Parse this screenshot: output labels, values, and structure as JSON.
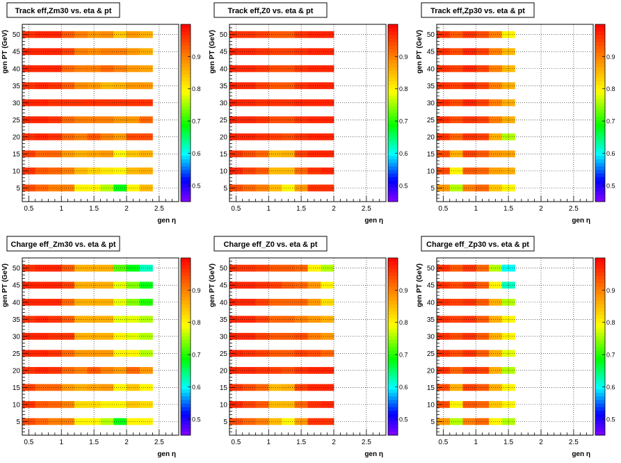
{
  "chart_data": [
    {
      "type": "heatmap",
      "title": "Track eff,Zm30 vs. eta & pt",
      "xlabel": "gen η",
      "ylabel": "gen PT (GeV)",
      "xlim": [
        0.4,
        2.8
      ],
      "ylim": [
        1,
        53
      ],
      "zlim": [
        0.45,
        1.0
      ],
      "grid": true,
      "x_ticks": [
        "0.5",
        "1",
        "1.5",
        "2",
        "2.5"
      ],
      "y_ticks": [
        "5",
        "10",
        "15",
        "20",
        "25",
        "30",
        "35",
        "40",
        "45",
        "50"
      ],
      "z_ticks": [
        "0.5",
        "0.6",
        "0.7",
        "0.8",
        "0.9"
      ],
      "eta_bins": [
        0.4,
        0.6,
        0.8,
        1.0,
        1.2,
        1.4,
        1.6,
        1.8,
        2.0,
        2.2,
        2.4
      ],
      "pt_bins": [
        4,
        6,
        9,
        11,
        14,
        16,
        19,
        21,
        24,
        26,
        29,
        31,
        34,
        36,
        39,
        41,
        44,
        46,
        49,
        51
      ],
      "values": [
        [
          0.94,
          0.92,
          0.9,
          0.9,
          0.8,
          0.8,
          0.76,
          0.68,
          0.8,
          0.85
        ],
        [
          0.96,
          0.93,
          0.92,
          0.9,
          0.85,
          0.83,
          0.81,
          0.8,
          0.85,
          0.86
        ],
        [
          0.95,
          0.92,
          0.92,
          0.88,
          0.86,
          0.87,
          0.88,
          0.8,
          0.84,
          0.86
        ],
        [
          0.96,
          0.97,
          0.96,
          0.92,
          0.9,
          0.93,
          0.9,
          0.88,
          0.94,
          0.94
        ],
        [
          0.97,
          0.97,
          0.96,
          0.92,
          0.9,
          0.9,
          0.9,
          0.88,
          0.88,
          0.92
        ],
        [
          0.97,
          0.97,
          0.96,
          0.96,
          0.96,
          0.96,
          0.96,
          0.96,
          0.96,
          0.96
        ],
        [
          0.96,
          0.97,
          0.96,
          0.93,
          0.89,
          0.88,
          0.85,
          0.86,
          0.88,
          0.88
        ],
        [
          0.97,
          0.97,
          0.97,
          0.92,
          0.9,
          0.9,
          0.92,
          0.9,
          0.88,
          0.87
        ],
        [
          0.97,
          0.97,
          0.97,
          0.95,
          0.9,
          0.89,
          0.9,
          0.9,
          0.88,
          0.86
        ],
        [
          0.96,
          0.97,
          0.97,
          0.93,
          0.9,
          0.88,
          0.89,
          0.84,
          0.88,
          0.86
        ]
      ]
    },
    {
      "type": "heatmap",
      "title": "Track eff,Z0 vs. eta & pt",
      "xlabel": "gen η",
      "ylabel": "gen PT (GeV)",
      "xlim": [
        0.4,
        2.8
      ],
      "ylim": [
        1,
        53
      ],
      "zlim": [
        0.45,
        1.0
      ],
      "grid": true,
      "x_ticks": [
        "0.5",
        "1",
        "1.5",
        "2",
        "2.5"
      ],
      "y_ticks": [
        "5",
        "10",
        "15",
        "20",
        "25",
        "30",
        "35",
        "40",
        "45",
        "50"
      ],
      "z_ticks": [
        "0.5",
        "0.6",
        "0.7",
        "0.8",
        "0.9"
      ],
      "eta_bins": [
        0.4,
        0.6,
        0.8,
        1.0,
        1.2,
        1.4,
        1.6,
        1.8,
        2.0
      ],
      "pt_bins": [
        4,
        6,
        9,
        11,
        14,
        16,
        19,
        21,
        24,
        26,
        29,
        31,
        34,
        36,
        39,
        41,
        44,
        46,
        49,
        51
      ],
      "values": [
        [
          0.94,
          0.92,
          0.9,
          0.85,
          0.8,
          0.88,
          0.96,
          0.96
        ],
        [
          0.97,
          0.95,
          0.93,
          0.85,
          0.85,
          0.92,
          0.96,
          0.97
        ],
        [
          0.96,
          0.94,
          0.92,
          0.85,
          0.86,
          0.95,
          0.97,
          0.97
        ],
        [
          0.97,
          0.97,
          0.96,
          0.95,
          0.94,
          0.96,
          0.97,
          0.97
        ],
        [
          0.97,
          0.97,
          0.96,
          0.94,
          0.94,
          0.96,
          0.97,
          0.97
        ],
        [
          0.97,
          0.97,
          0.96,
          0.96,
          0.96,
          0.97,
          0.97,
          0.97
        ],
        [
          0.97,
          0.97,
          0.95,
          0.93,
          0.93,
          0.96,
          0.97,
          0.97
        ],
        [
          0.97,
          0.97,
          0.96,
          0.94,
          0.94,
          0.96,
          0.97,
          0.97
        ],
        [
          0.97,
          0.97,
          0.96,
          0.95,
          0.95,
          0.96,
          0.97,
          0.97
        ],
        [
          0.96,
          0.96,
          0.95,
          0.93,
          0.93,
          0.96,
          0.97,
          0.97
        ]
      ]
    },
    {
      "type": "heatmap",
      "title": "Track eff,Zp30 vs. eta & pt",
      "xlabel": "gen η",
      "ylabel": "gen PT (GeV)",
      "xlim": [
        0.4,
        2.8
      ],
      "ylim": [
        1,
        53
      ],
      "zlim": [
        0.45,
        1.0
      ],
      "grid": true,
      "x_ticks": [
        "0.5",
        "1",
        "1.5",
        "2",
        "2.5"
      ],
      "y_ticks": [
        "5",
        "10",
        "15",
        "20",
        "25",
        "30",
        "35",
        "40",
        "45",
        "50"
      ],
      "z_ticks": [
        "0.5",
        "0.6",
        "0.7",
        "0.8",
        "0.9"
      ],
      "eta_bins": [
        0.4,
        0.6,
        0.8,
        1.0,
        1.2,
        1.4,
        1.6
      ],
      "pt_bins": [
        4,
        6,
        9,
        11,
        14,
        16,
        19,
        21,
        24,
        26,
        29,
        31,
        34,
        36,
        39,
        41,
        44,
        46,
        49,
        51
      ],
      "values": [
        [
          0.88,
          0.76,
          0.9,
          0.92,
          0.84,
          0.8
        ],
        [
          0.94,
          0.8,
          0.93,
          0.92,
          0.87,
          0.86
        ],
        [
          0.94,
          0.86,
          0.95,
          0.93,
          0.88,
          0.87
        ],
        [
          0.96,
          0.92,
          0.96,
          0.95,
          0.86,
          0.76
        ],
        [
          0.96,
          0.94,
          0.96,
          0.95,
          0.9,
          0.86
        ],
        [
          0.96,
          0.94,
          0.97,
          0.95,
          0.9,
          0.86
        ],
        [
          0.96,
          0.95,
          0.97,
          0.95,
          0.9,
          0.86
        ],
        [
          0.96,
          0.95,
          0.97,
          0.95,
          0.9,
          0.85
        ],
        [
          0.96,
          0.94,
          0.97,
          0.95,
          0.9,
          0.85
        ],
        [
          0.96,
          0.93,
          0.96,
          0.94,
          0.9,
          0.8
        ]
      ]
    },
    {
      "type": "heatmap",
      "title": "Charge eff_Zm30 vs. eta & pt",
      "xlabel": "gen η",
      "ylabel": "gen PT (GeV)",
      "xlim": [
        0.4,
        2.8
      ],
      "ylim": [
        1,
        53
      ],
      "zlim": [
        0.45,
        1.0
      ],
      "grid": true,
      "x_ticks": [
        "0.5",
        "1",
        "1.5",
        "2",
        "2.5"
      ],
      "y_ticks": [
        "5",
        "10",
        "15",
        "20",
        "25",
        "30",
        "35",
        "40",
        "45",
        "50"
      ],
      "z_ticks": [
        "0.5",
        "0.6",
        "0.7",
        "0.8",
        "0.9"
      ],
      "eta_bins": [
        0.4,
        0.6,
        0.8,
        1.0,
        1.2,
        1.4,
        1.6,
        1.8,
        2.0,
        2.2,
        2.4
      ],
      "pt_bins": [
        4,
        6,
        9,
        11,
        14,
        16,
        19,
        21,
        24,
        26,
        29,
        31,
        34,
        36,
        39,
        41,
        44,
        46,
        49,
        51
      ],
      "values": [
        [
          0.94,
          0.92,
          0.9,
          0.9,
          0.8,
          0.8,
          0.76,
          0.68,
          0.8,
          0.8
        ],
        [
          0.96,
          0.93,
          0.92,
          0.9,
          0.82,
          0.82,
          0.8,
          0.8,
          0.84,
          0.82
        ],
        [
          0.95,
          0.92,
          0.92,
          0.88,
          0.86,
          0.87,
          0.88,
          0.8,
          0.84,
          0.8
        ],
        [
          0.96,
          0.97,
          0.96,
          0.92,
          0.9,
          0.93,
          0.9,
          0.88,
          0.92,
          0.88
        ],
        [
          0.97,
          0.97,
          0.96,
          0.92,
          0.88,
          0.88,
          0.88,
          0.8,
          0.8,
          0.76
        ],
        [
          0.97,
          0.97,
          0.96,
          0.96,
          0.86,
          0.86,
          0.86,
          0.8,
          0.78,
          0.76
        ],
        [
          0.96,
          0.97,
          0.96,
          0.93,
          0.86,
          0.86,
          0.86,
          0.78,
          0.78,
          0.76
        ],
        [
          0.97,
          0.97,
          0.97,
          0.92,
          0.86,
          0.86,
          0.86,
          0.78,
          0.74,
          0.7
        ],
        [
          0.97,
          0.97,
          0.97,
          0.95,
          0.86,
          0.86,
          0.86,
          0.78,
          0.74,
          0.68
        ],
        [
          0.96,
          0.97,
          0.97,
          0.93,
          0.86,
          0.86,
          0.86,
          0.72,
          0.68,
          0.62
        ]
      ]
    },
    {
      "type": "heatmap",
      "title": "Charge eff_Z0 vs. eta & pt",
      "xlabel": "gen η",
      "ylabel": "gen PT (GeV)",
      "xlim": [
        0.4,
        2.8
      ],
      "ylim": [
        1,
        53
      ],
      "zlim": [
        0.45,
        1.0
      ],
      "grid": true,
      "x_ticks": [
        "0.5",
        "1",
        "1.5",
        "2",
        "2.5"
      ],
      "y_ticks": [
        "5",
        "10",
        "15",
        "20",
        "25",
        "30",
        "35",
        "40",
        "45",
        "50"
      ],
      "z_ticks": [
        "0.5",
        "0.6",
        "0.7",
        "0.8",
        "0.9"
      ],
      "eta_bins": [
        0.4,
        0.6,
        0.8,
        1.0,
        1.2,
        1.4,
        1.6,
        1.8,
        2.0
      ],
      "pt_bins": [
        4,
        6,
        9,
        11,
        14,
        16,
        19,
        21,
        24,
        26,
        29,
        31,
        34,
        36,
        39,
        41,
        44,
        46,
        49,
        51
      ],
      "values": [
        [
          0.94,
          0.92,
          0.9,
          0.85,
          0.8,
          0.88,
          0.96,
          0.96
        ],
        [
          0.97,
          0.95,
          0.93,
          0.85,
          0.85,
          0.92,
          0.96,
          0.97
        ],
        [
          0.96,
          0.94,
          0.92,
          0.85,
          0.86,
          0.95,
          0.97,
          0.97
        ],
        [
          0.97,
          0.97,
          0.96,
          0.95,
          0.94,
          0.96,
          0.97,
          0.97
        ],
        [
          0.97,
          0.96,
          0.95,
          0.93,
          0.93,
          0.95,
          0.94,
          0.92
        ],
        [
          0.97,
          0.97,
          0.95,
          0.93,
          0.93,
          0.94,
          0.9,
          0.88
        ],
        [
          0.97,
          0.97,
          0.95,
          0.92,
          0.92,
          0.9,
          0.88,
          0.86
        ],
        [
          0.97,
          0.97,
          0.95,
          0.92,
          0.92,
          0.92,
          0.88,
          0.82
        ],
        [
          0.97,
          0.97,
          0.96,
          0.95,
          0.93,
          0.92,
          0.88,
          0.8
        ],
        [
          0.96,
          0.96,
          0.95,
          0.93,
          0.93,
          0.92,
          0.8,
          0.76
        ]
      ]
    },
    {
      "type": "heatmap",
      "title": "Charge eff_Zp30 vs. eta & pt",
      "xlabel": "gen η",
      "ylabel": "gen PT (GeV)",
      "xlim": [
        0.4,
        2.8
      ],
      "ylim": [
        1,
        53
      ],
      "zlim": [
        0.45,
        1.0
      ],
      "grid": true,
      "x_ticks": [
        "0.5",
        "1",
        "1.5",
        "2",
        "2.5"
      ],
      "y_ticks": [
        "5",
        "10",
        "15",
        "20",
        "25",
        "30",
        "35",
        "40",
        "45",
        "50"
      ],
      "z_ticks": [
        "0.5",
        "0.6",
        "0.7",
        "0.8",
        "0.9"
      ],
      "eta_bins": [
        0.4,
        0.6,
        0.8,
        1.0,
        1.2,
        1.4,
        1.6
      ],
      "pt_bins": [
        4,
        6,
        9,
        11,
        14,
        16,
        19,
        21,
        24,
        26,
        29,
        31,
        34,
        36,
        39,
        41,
        44,
        46,
        49,
        51
      ],
      "values": [
        [
          0.88,
          0.76,
          0.9,
          0.92,
          0.8,
          0.76
        ],
        [
          0.94,
          0.8,
          0.93,
          0.92,
          0.84,
          0.8
        ],
        [
          0.94,
          0.86,
          0.95,
          0.93,
          0.86,
          0.8
        ],
        [
          0.96,
          0.92,
          0.96,
          0.95,
          0.86,
          0.76
        ],
        [
          0.96,
          0.94,
          0.96,
          0.93,
          0.86,
          0.78
        ],
        [
          0.96,
          0.94,
          0.96,
          0.93,
          0.86,
          0.8
        ],
        [
          0.96,
          0.95,
          0.96,
          0.93,
          0.86,
          0.8
        ],
        [
          0.96,
          0.95,
          0.96,
          0.93,
          0.86,
          0.76
        ],
        [
          0.96,
          0.94,
          0.96,
          0.93,
          0.8,
          0.62
        ],
        [
          0.96,
          0.93,
          0.96,
          0.92,
          0.76,
          0.6
        ]
      ]
    }
  ]
}
